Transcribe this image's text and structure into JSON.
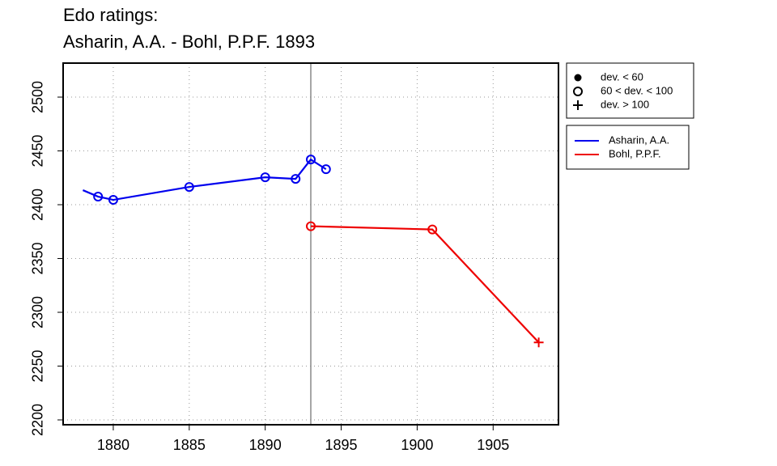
{
  "chart_data": {
    "type": "line",
    "title": "Edo ratings:",
    "subtitle": "Asharin, A.A. - Bohl, P.P.F. 1893",
    "x": null,
    "series": [
      {
        "name": "Asharin, A.A.",
        "color": "#0000ee",
        "x": [
          1878,
          1879,
          1880,
          1885,
          1890,
          1892,
          1893,
          1894
        ],
        "values": [
          2413.5,
          2407.5,
          2404.5,
          2416.5,
          2425.5,
          2424,
          2442,
          2433
        ],
        "markers": [
          "none",
          "open",
          "open",
          "open",
          "open",
          "open",
          "open",
          "open"
        ]
      },
      {
        "name": "Bohl, P.P.F.",
        "color": "#ee0000",
        "x": [
          1893,
          1901,
          1908
        ],
        "values": [
          2380,
          2377,
          2272
        ],
        "markers": [
          "open",
          "open",
          "plus"
        ]
      }
    ],
    "xlim": [
      1876.7,
      1909.3
    ],
    "xticks": [
      1880,
      1885,
      1890,
      1895,
      1900,
      1905
    ],
    "ylim": [
      2195.5,
      2531.6
    ],
    "yticks": [
      2200,
      2250,
      2300,
      2350,
      2400,
      2450,
      2500
    ],
    "grid": true,
    "vline": 1893,
    "vline_color": "#888888",
    "symbol_legend": [
      {
        "marker": "filled",
        "label": "dev. < 60"
      },
      {
        "marker": "open",
        "label": "60 < dev. < 100"
      },
      {
        "marker": "plus",
        "label": "dev. > 100"
      }
    ]
  }
}
